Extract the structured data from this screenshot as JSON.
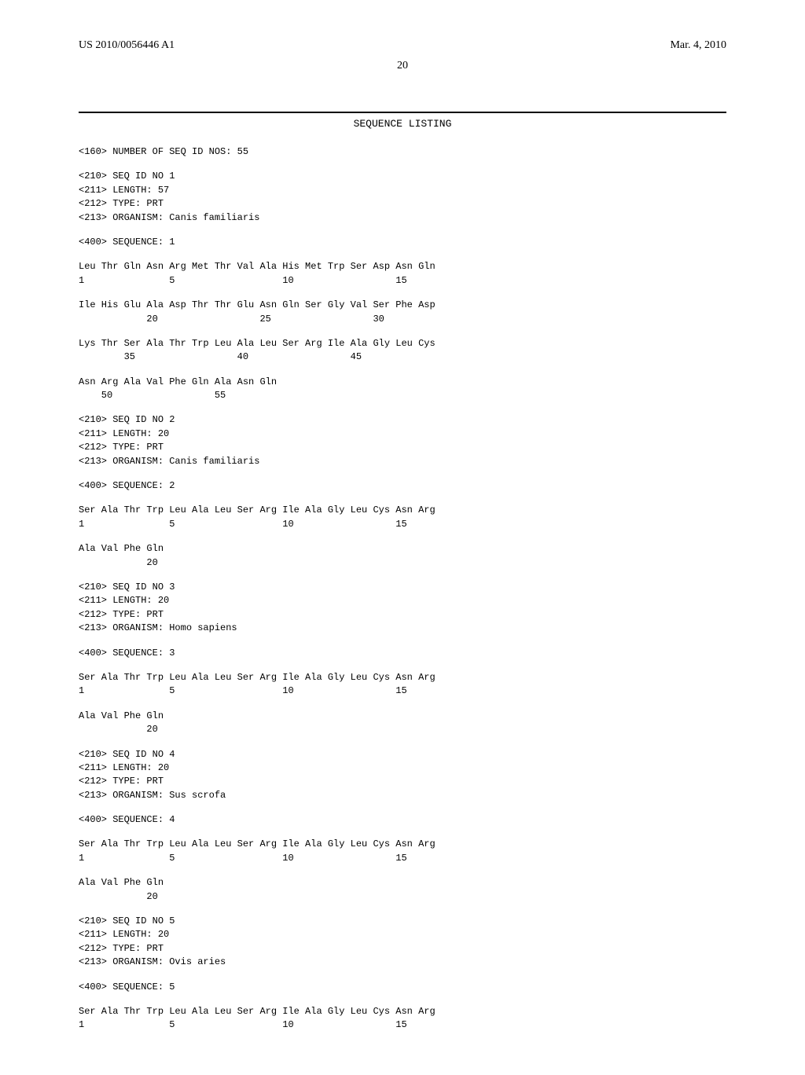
{
  "header": {
    "left": "US 2010/0056446 A1",
    "right": "Mar. 4, 2010"
  },
  "page_number": "20",
  "section_title": "SEQUENCE LISTING",
  "num_seq_line": "<160> NUMBER OF SEQ ID NOS: 55",
  "sequences": [
    {
      "meta": [
        "<210> SEQ ID NO 1",
        "<211> LENGTH: 57",
        "<212> TYPE: PRT",
        "<213> ORGANISM: Canis familiaris"
      ],
      "seq_label": "<400> SEQUENCE: 1",
      "rows": [
        {
          "aa": "Leu Thr Gln Asn Arg Met Thr Val Ala His Met Trp Ser Asp Asn Gln",
          "nums": "1               5                   10                  15"
        },
        {
          "aa": "Ile His Glu Ala Asp Thr Thr Glu Asn Gln Ser Gly Val Ser Phe Asp",
          "nums": "            20                  25                  30"
        },
        {
          "aa": "Lys Thr Ser Ala Thr Trp Leu Ala Leu Ser Arg Ile Ala Gly Leu Cys",
          "nums": "        35                  40                  45"
        },
        {
          "aa": "Asn Arg Ala Val Phe Gln Ala Asn Gln",
          "nums": "    50                  55"
        }
      ]
    },
    {
      "meta": [
        "<210> SEQ ID NO 2",
        "<211> LENGTH: 20",
        "<212> TYPE: PRT",
        "<213> ORGANISM: Canis familiaris"
      ],
      "seq_label": "<400> SEQUENCE: 2",
      "rows": [
        {
          "aa": "Ser Ala Thr Trp Leu Ala Leu Ser Arg Ile Ala Gly Leu Cys Asn Arg",
          "nums": "1               5                   10                  15"
        },
        {
          "aa": "Ala Val Phe Gln",
          "nums": "            20"
        }
      ]
    },
    {
      "meta": [
        "<210> SEQ ID NO 3",
        "<211> LENGTH: 20",
        "<212> TYPE: PRT",
        "<213> ORGANISM: Homo sapiens"
      ],
      "seq_label": "<400> SEQUENCE: 3",
      "rows": [
        {
          "aa": "Ser Ala Thr Trp Leu Ala Leu Ser Arg Ile Ala Gly Leu Cys Asn Arg",
          "nums": "1               5                   10                  15"
        },
        {
          "aa": "Ala Val Phe Gln",
          "nums": "            20"
        }
      ]
    },
    {
      "meta": [
        "<210> SEQ ID NO 4",
        "<211> LENGTH: 20",
        "<212> TYPE: PRT",
        "<213> ORGANISM: Sus scrofa"
      ],
      "seq_label": "<400> SEQUENCE: 4",
      "rows": [
        {
          "aa": "Ser Ala Thr Trp Leu Ala Leu Ser Arg Ile Ala Gly Leu Cys Asn Arg",
          "nums": "1               5                   10                  15"
        },
        {
          "aa": "Ala Val Phe Gln",
          "nums": "            20"
        }
      ]
    },
    {
      "meta": [
        "<210> SEQ ID NO 5",
        "<211> LENGTH: 20",
        "<212> TYPE: PRT",
        "<213> ORGANISM: Ovis aries"
      ],
      "seq_label": "<400> SEQUENCE: 5",
      "rows": [
        {
          "aa": "Ser Ala Thr Trp Leu Ala Leu Ser Arg Ile Ala Gly Leu Cys Asn Arg",
          "nums": "1               5                   10                  15"
        }
      ]
    }
  ]
}
